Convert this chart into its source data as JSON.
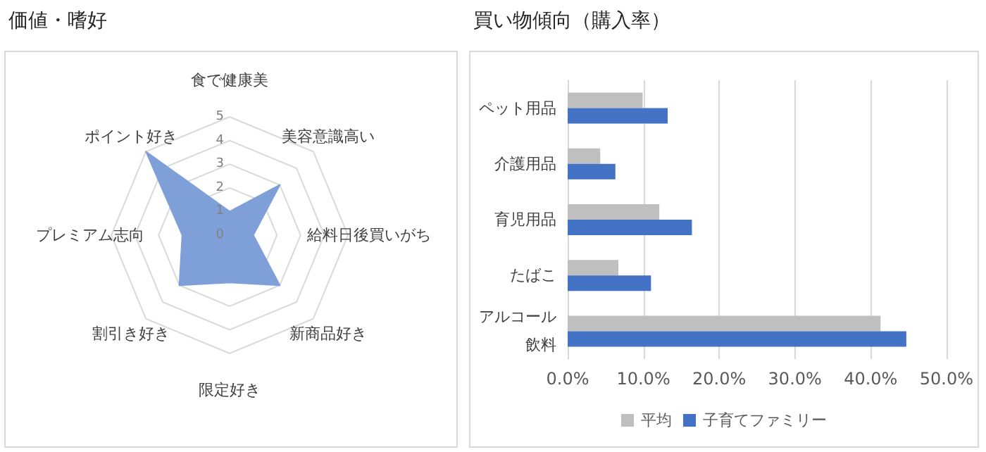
{
  "chart_data": [
    {
      "type": "radar",
      "title": "価値・嗜好",
      "categories": [
        "食で健康美",
        "美容意識高い",
        "給料日後買いがち",
        "新商品好き",
        "限定好き",
        "割引き好き",
        "プレミアム志向",
        "ポイント好き"
      ],
      "series": [
        {
          "color": "#7f9fd9",
          "values": [
            1,
            3,
            1,
            3,
            2,
            3,
            2,
            5
          ]
        }
      ],
      "ylim": [
        0,
        5
      ],
      "yticks": [
        0,
        1,
        2,
        3,
        4,
        5
      ],
      "legend": false
    },
    {
      "type": "bar",
      "orientation": "horizontal",
      "title": "買い物傾向（購入率）",
      "categories": [
        "ペット用品",
        "介護用品",
        "育児用品",
        "たばこ",
        "アルコール飲料"
      ],
      "series": [
        {
          "name": "平均",
          "color": "#bfbfbf",
          "values": [
            9.9,
            4.3,
            12.1,
            6.7,
            41.3
          ]
        },
        {
          "name": "子育てファミリー",
          "color": "#4472c4",
          "values": [
            13.2,
            6.3,
            16.4,
            11.0,
            44.7
          ]
        }
      ],
      "xlim": [
        0,
        50
      ],
      "xticks": [
        {
          "value": 0,
          "label": "0.0%"
        },
        {
          "value": 10,
          "label": "10.0%"
        },
        {
          "value": 20,
          "label": "20.0%"
        },
        {
          "value": 30,
          "label": "30.0%"
        },
        {
          "value": 40,
          "label": "40.0%"
        },
        {
          "value": 50,
          "label": "50.0%"
        }
      ],
      "grid": "x",
      "legend": "bottom"
    }
  ]
}
